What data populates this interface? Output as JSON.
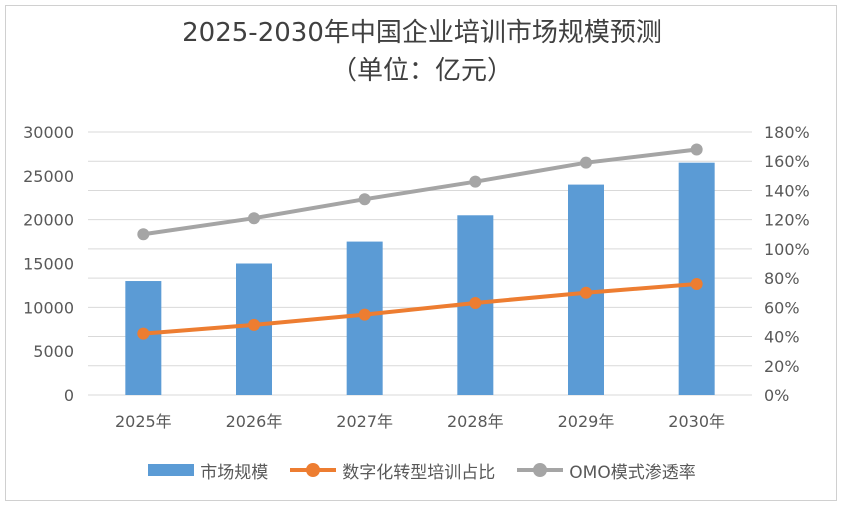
{
  "chart_data": {
    "type": "bar+line",
    "title": "2025-2030年中国企业培训市场规模预测",
    "subtitle": "（单位：亿元）",
    "categories": [
      "2025年",
      "2026年",
      "2027年",
      "2028年",
      "2029年",
      "2030年"
    ],
    "series": [
      {
        "name": "市场规模",
        "type": "bar",
        "axis": "left",
        "color": "#5b9bd5",
        "values": [
          13000,
          15000,
          17500,
          20500,
          24000,
          26500
        ]
      },
      {
        "name": "数字化转型培训占比",
        "type": "line",
        "axis": "right",
        "color": "#ed7d31",
        "values": [
          0.42,
          0.48,
          0.55,
          0.63,
          0.7,
          0.76
        ]
      },
      {
        "name": "OMO模式渗透率",
        "type": "line",
        "axis": "right",
        "color": "#a5a5a5",
        "values": [
          1.1,
          1.21,
          1.34,
          1.46,
          1.59,
          1.68
        ]
      }
    ],
    "y_left": {
      "min": 0,
      "max": 30000,
      "ticks": [
        "0",
        "5000",
        "10000",
        "15000",
        "20000",
        "25000",
        "30000"
      ]
    },
    "y_right": {
      "min": 0,
      "max": 1.8,
      "ticks": [
        "0%",
        "20%",
        "40%",
        "60%",
        "80%",
        "100%",
        "120%",
        "140%",
        "160%",
        "180%"
      ]
    },
    "grid": true,
    "legend_position": "bottom"
  }
}
